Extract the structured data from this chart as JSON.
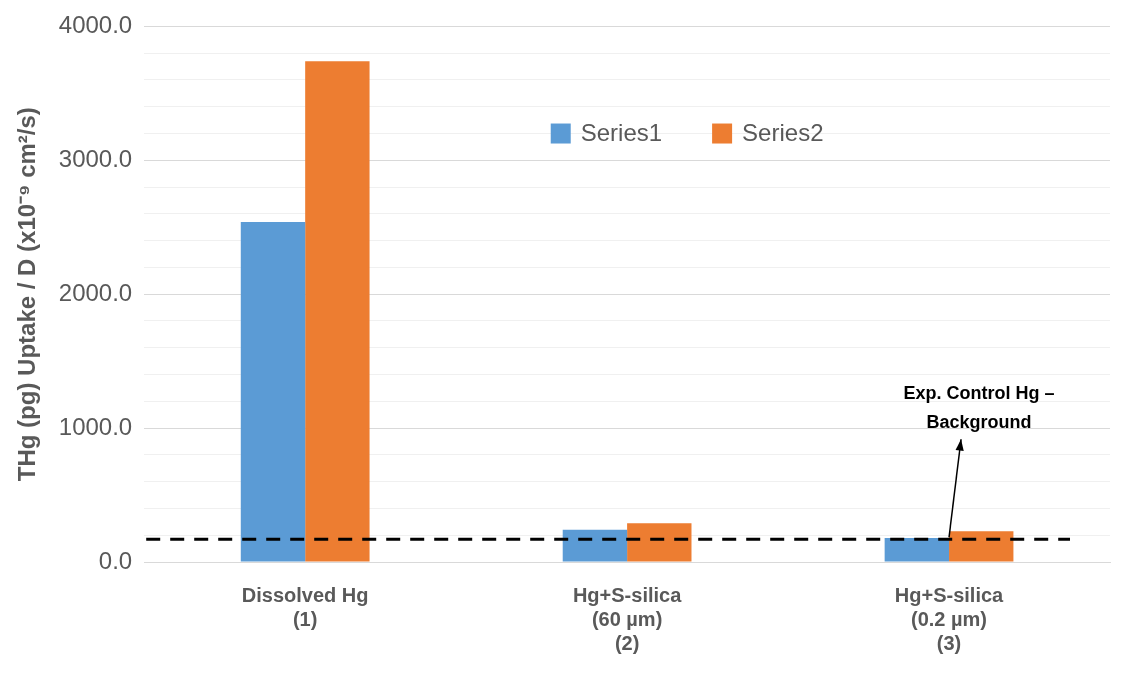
{
  "chart_data": {
    "type": "bar",
    "ylabel": "THg (pg) Uptake / D (x10⁻⁹ cm²/s)",
    "categories": [
      "Dissolved Hg\n(1)",
      "Hg+S-silica\n(60 µm)\n(2)",
      "Hg+S-silica\n(0.2 µm)\n(3)"
    ],
    "series": [
      {
        "name": "Series1",
        "color": "#5b9bd5",
        "values": [
          2540,
          240,
          180
        ]
      },
      {
        "name": "Series2",
        "color": "#ed7d31",
        "values": [
          3740,
          290,
          230
        ]
      }
    ],
    "ylim": [
      0,
      4000
    ],
    "yticks": [
      {
        "value": 0,
        "label": "0.0"
      },
      {
        "value": 200,
        "label": null
      },
      {
        "value": 400,
        "label": null
      },
      {
        "value": 600,
        "label": null
      },
      {
        "value": 800,
        "label": null
      },
      {
        "value": 1000,
        "label": "1000.0"
      },
      {
        "value": 1200,
        "label": null
      },
      {
        "value": 1400,
        "label": null
      },
      {
        "value": 1600,
        "label": null
      },
      {
        "value": 1800,
        "label": null
      },
      {
        "value": 2000,
        "label": "2000.0"
      },
      {
        "value": 2200,
        "label": null
      },
      {
        "value": 2400,
        "label": null
      },
      {
        "value": 2600,
        "label": null
      },
      {
        "value": 2800,
        "label": null
      },
      {
        "value": 3000,
        "label": "3000.0"
      },
      {
        "value": 3200,
        "label": null
      },
      {
        "value": 3400,
        "label": null
      },
      {
        "value": 3600,
        "label": null
      },
      {
        "value": 3800,
        "label": null
      },
      {
        "value": 4000,
        "label": "4000.0"
      }
    ],
    "ref_lines": [
      {
        "axis": "y",
        "value": 170,
        "label": "Exp. Control Hg –\nBackground",
        "color": "#000000",
        "line_style": "dashed"
      }
    ],
    "grid": "y",
    "legend": "top"
  }
}
